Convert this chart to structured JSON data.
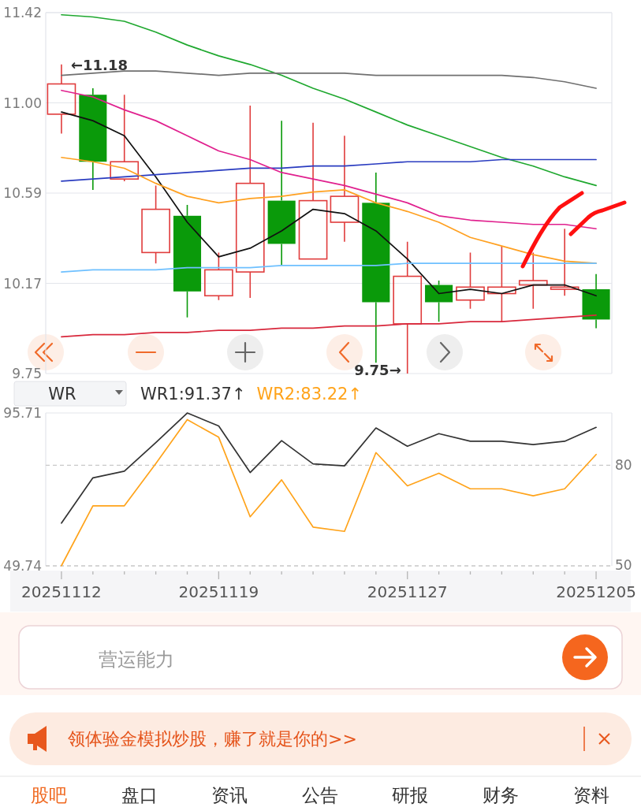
{
  "chart_data": [
    {
      "type": "candlestick",
      "categories": [
        null,
        null,
        null,
        null,
        null,
        null,
        null,
        null,
        null,
        null,
        null,
        null,
        null,
        null,
        null,
        null,
        null,
        null
      ],
      "ohlc": [
        [
          10.95,
          11.18,
          10.86,
          11.09
        ],
        [
          11.04,
          11.07,
          10.6,
          10.73
        ],
        [
          10.65,
          11.04,
          10.64,
          10.73
        ],
        [
          10.31,
          10.62,
          10.26,
          10.51
        ],
        [
          10.48,
          10.53,
          10.01,
          10.13
        ],
        [
          10.11,
          10.31,
          10.09,
          10.23
        ],
        [
          10.22,
          10.99,
          10.1,
          10.63
        ],
        [
          10.55,
          10.92,
          10.25,
          10.35
        ],
        [
          10.28,
          10.91,
          10.28,
          10.55
        ],
        [
          10.45,
          10.85,
          10.36,
          10.57
        ],
        [
          10.54,
          10.68,
          9.8,
          10.08
        ],
        [
          9.98,
          10.36,
          9.75,
          10.2
        ],
        [
          10.16,
          10.18,
          9.99,
          10.08
        ],
        [
          10.09,
          10.31,
          10.05,
          10.15
        ],
        [
          10.12,
          10.34,
          9.99,
          10.15
        ],
        [
          10.16,
          10.31,
          10.05,
          10.18
        ],
        [
          10.14,
          10.42,
          10.11,
          10.15
        ],
        [
          10.14,
          10.21,
          9.96,
          10.0
        ]
      ],
      "colors": [
        "#e03c3c",
        "#0a9a0a",
        "#e03c3c",
        "#e03c3c",
        "#0a9a0a",
        "#e03c3c",
        "#e03c3c",
        "#0a9a0a",
        "#e03c3c",
        "#e03c3c",
        "#0a9a0a",
        "#e03c3c",
        "#0a9a0a",
        "#e03c3c",
        "#e03c3c",
        "#e03c3c",
        "#e03c3c",
        "#0a9a0a"
      ],
      "series": [
        {
          "type": "line",
          "color": "#111111",
          "values": [
            10.96,
            10.92,
            10.85,
            10.66,
            10.45,
            10.29,
            10.33,
            10.41,
            10.51,
            10.49,
            10.41,
            10.28,
            10.12,
            10.14,
            10.12,
            10.16,
            10.16,
            10.11
          ]
        },
        {
          "type": "line",
          "color": "#1fa82f",
          "values": [
            11.41,
            11.4,
            11.38,
            11.33,
            11.27,
            11.22,
            11.18,
            11.13,
            11.07,
            11.02,
            10.96,
            10.9,
            10.85,
            10.8,
            10.75,
            10.71,
            10.66,
            10.62
          ]
        },
        {
          "type": "line",
          "color": "#707070",
          "values": [
            11.13,
            11.14,
            11.15,
            11.15,
            11.14,
            11.13,
            11.14,
            11.14,
            11.14,
            11.14,
            11.13,
            11.13,
            11.13,
            11.13,
            11.13,
            11.12,
            11.1,
            11.07
          ]
        },
        {
          "type": "line",
          "color": "#2a3cc0",
          "values": [
            10.64,
            10.65,
            10.66,
            10.67,
            10.68,
            10.69,
            10.7,
            10.7,
            10.71,
            10.71,
            10.72,
            10.73,
            10.73,
            10.73,
            10.74,
            10.74,
            10.74,
            10.74
          ]
        },
        {
          "type": "line",
          "color": "#e0208e",
          "values": [
            11.06,
            11.03,
            10.97,
            10.92,
            10.85,
            10.78,
            10.74,
            10.68,
            10.65,
            10.62,
            10.58,
            10.54,
            10.48,
            10.46,
            10.45,
            10.44,
            10.44,
            10.42
          ]
        },
        {
          "type": "line",
          "color": "#ffa020",
          "values": [
            10.75,
            10.73,
            10.7,
            10.63,
            10.57,
            10.54,
            10.56,
            10.57,
            10.59,
            10.6,
            10.54,
            10.5,
            10.45,
            10.38,
            10.34,
            10.3,
            10.27,
            10.26
          ]
        },
        {
          "type": "line",
          "color": "#6ec0ff",
          "values": [
            10.22,
            10.23,
            10.23,
            10.23,
            10.24,
            10.24,
            10.24,
            10.25,
            10.25,
            10.25,
            10.25,
            10.26,
            10.26,
            10.26,
            10.26,
            10.26,
            10.26,
            10.26
          ]
        },
        {
          "type": "line",
          "color": "#d8283c",
          "values": [
            9.92,
            9.93,
            9.93,
            9.94,
            9.94,
            9.95,
            9.95,
            9.96,
            9.96,
            9.97,
            9.97,
            9.98,
            9.98,
            9.99,
            9.99,
            10.0,
            10.01,
            10.02
          ]
        }
      ],
      "ylim": [
        9.75,
        11.42
      ],
      "yticks": [
        11.42,
        {
          "value": 11.0025,
          "label": "11.00"
        },
        {
          "value": 10.585,
          "label": "10.59"
        },
        {
          "value": 10.1675,
          "label": "10.17"
        },
        9.75
      ],
      "grid": "y",
      "tick_labels": "y",
      "annotations": [
        "←11.18",
        "9.75→"
      ]
    },
    {
      "type": "line",
      "title": "WR",
      "categories": [
        "20251112",
        null,
        null,
        null,
        null,
        "20251119",
        null,
        null,
        null,
        null,
        null,
        "20251127",
        null,
        null,
        null,
        null,
        null,
        "20251205"
      ],
      "series": [
        {
          "name": "WR1:91.37↑",
          "color": "#333333",
          "values": [
            62.6,
            76.2,
            78.2,
            86.8,
            95.7,
            91.8,
            77.8,
            87.4,
            80.4,
            79.8,
            91.2,
            85.7,
            89.5,
            87.2,
            87.2,
            86.2,
            87.2,
            91.37
          ]
        },
        {
          "name": "WR2:83.22↑",
          "color": "#ffa31a",
          "values": [
            49.8,
            67.8,
            67.8,
            80.5,
            93.7,
            88.4,
            64.5,
            75.6,
            61.4,
            60.1,
            83.8,
            73.8,
            77.6,
            72.9,
            72.9,
            70.8,
            72.9,
            83.22
          ]
        }
      ],
      "ylim": [
        49.74,
        95.71
      ],
      "yticks": [
        95.71,
        49.74
      ],
      "y2lim": [
        49.74,
        95.71
      ],
      "y2ticks": [
        80,
        50
      ],
      "ref_lines": [
        {
          "axis": "y",
          "value": 80,
          "line_style": "dashed",
          "color": "#c8c8c8"
        }
      ],
      "legend": "top left"
    },
    {
      "type": "other",
      "annotations": [
        "营运能力",
        "领体验金模拟炒股，赚了就是你的>>",
        "股吧",
        "盘口",
        "资讯",
        "公告",
        "研报",
        "财务",
        "资料"
      ]
    }
  ]
}
